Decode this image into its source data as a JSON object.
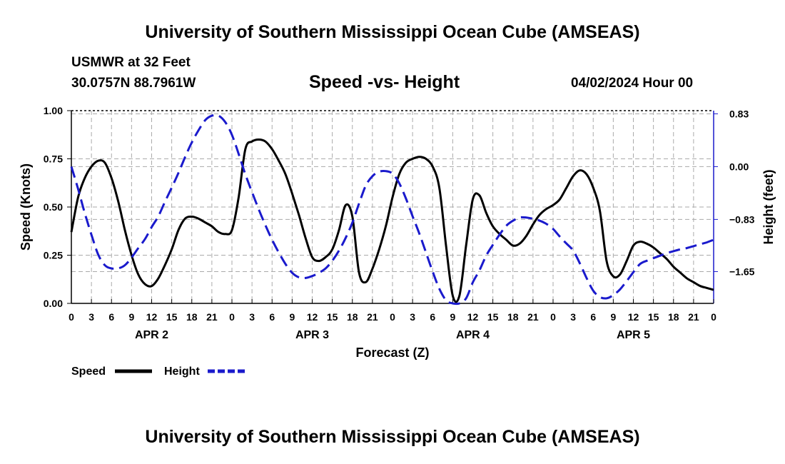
{
  "header": {
    "title": "University of Southern Mississippi Ocean Cube (AMSEAS)",
    "station": "USMWR at 32 Feet",
    "coords": "30.0757N  88.7961W",
    "chart_title": "Speed -vs- Height",
    "datetime": "04/02/2024 Hour 00"
  },
  "footer": {
    "title": "University of Southern Mississippi Ocean Cube (AMSEAS)"
  },
  "colors": {
    "speed": "#000000",
    "height": "#1a1acc",
    "grid": "#aaaaaa"
  },
  "chart_data": {
    "type": "line",
    "title": "Speed -vs- Height",
    "xlabel": "Forecast (Z)",
    "ylabel_left": "Speed (Knots)",
    "ylabel_right": "Height (feet)",
    "x_unit": "forecast hour",
    "xlim": [
      0,
      96
    ],
    "ylim_left": [
      0,
      1
    ],
    "ylim_right": [
      -2.15,
      0.88
    ],
    "x_ticks": [
      0,
      3,
      6,
      9,
      12,
      15,
      18,
      21,
      24,
      27,
      30,
      33,
      36,
      39,
      42,
      45,
      48,
      51,
      54,
      57,
      60,
      63,
      66,
      69,
      72,
      75,
      78,
      81,
      84,
      87,
      90,
      93,
      96
    ],
    "x_tick_labels": [
      "0",
      "3",
      "6",
      "9",
      "12",
      "15",
      "18",
      "21",
      "0",
      "3",
      "6",
      "9",
      "12",
      "15",
      "18",
      "21",
      "0",
      "3",
      "6",
      "9",
      "12",
      "15",
      "18",
      "21",
      "0",
      "3",
      "6",
      "9",
      "12",
      "15",
      "18",
      "21",
      "0"
    ],
    "day_labels": [
      {
        "label": "APR 2",
        "x": 12
      },
      {
        "label": "APR 3",
        "x": 36
      },
      {
        "label": "APR 4",
        "x": 60
      },
      {
        "label": "APR 5",
        "x": 84
      }
    ],
    "left_ticks": [
      0,
      0.25,
      0.5,
      0.75,
      1.0
    ],
    "left_tick_labels": [
      "0.00",
      "0.25",
      "0.50",
      "0.75",
      "1.00"
    ],
    "right_ticks": [
      0.83,
      0.0,
      -0.83,
      -1.65
    ],
    "right_tick_labels": [
      "0.83",
      "0.00",
      "−0.83",
      "−1.65"
    ],
    "grid": true,
    "legend_position": "bottom-left",
    "series": [
      {
        "name": "Speed",
        "axis": "left",
        "style": "solid",
        "x": [
          0,
          1,
          2,
          3,
          4,
          5,
          6,
          7,
          8,
          9,
          10,
          11,
          12,
          13,
          14,
          15,
          16,
          17,
          18,
          19,
          20,
          21,
          22,
          23,
          24,
          25,
          26,
          27,
          28,
          29,
          30,
          31,
          32,
          33,
          34,
          35,
          36,
          37,
          38,
          39,
          40,
          41,
          42,
          43,
          44,
          45,
          46,
          47,
          48,
          49,
          50,
          51,
          52,
          53,
          54,
          55,
          56,
          57,
          58,
          59,
          60,
          61,
          62,
          63,
          64,
          65,
          66,
          67,
          68,
          69,
          70,
          71,
          72,
          73,
          74,
          75,
          76,
          77,
          78,
          79,
          80,
          81,
          82,
          83,
          84,
          85,
          86,
          87,
          88,
          89,
          90,
          91,
          92,
          93,
          94,
          95,
          96
        ],
        "values": [
          0.37,
          0.55,
          0.65,
          0.71,
          0.74,
          0.73,
          0.65,
          0.53,
          0.38,
          0.25,
          0.15,
          0.1,
          0.09,
          0.13,
          0.2,
          0.28,
          0.38,
          0.44,
          0.45,
          0.44,
          0.42,
          0.4,
          0.37,
          0.36,
          0.38,
          0.55,
          0.8,
          0.84,
          0.85,
          0.84,
          0.8,
          0.74,
          0.67,
          0.57,
          0.46,
          0.34,
          0.24,
          0.22,
          0.24,
          0.28,
          0.38,
          0.51,
          0.45,
          0.16,
          0.11,
          0.18,
          0.28,
          0.4,
          0.55,
          0.67,
          0.73,
          0.75,
          0.76,
          0.75,
          0.71,
          0.6,
          0.3,
          0.04,
          0.04,
          0.3,
          0.54,
          0.56,
          0.47,
          0.4,
          0.36,
          0.33,
          0.3,
          0.31,
          0.35,
          0.41,
          0.46,
          0.49,
          0.51,
          0.54,
          0.6,
          0.66,
          0.69,
          0.67,
          0.6,
          0.48,
          0.22,
          0.14,
          0.15,
          0.22,
          0.3,
          0.32,
          0.31,
          0.29,
          0.26,
          0.23,
          0.19,
          0.16,
          0.13,
          0.11,
          0.09,
          0.08,
          0.07
        ]
      },
      {
        "name": "Height",
        "axis": "right",
        "style": "dashed",
        "x": [
          0,
          1,
          2,
          3,
          4,
          5,
          6,
          7,
          8,
          9,
          10,
          11,
          12,
          13,
          14,
          15,
          16,
          17,
          18,
          19,
          20,
          21,
          22,
          23,
          24,
          25,
          26,
          27,
          28,
          29,
          30,
          31,
          32,
          33,
          34,
          35,
          36,
          37,
          38,
          39,
          40,
          41,
          42,
          43,
          44,
          45,
          46,
          47,
          48,
          49,
          50,
          51,
          52,
          53,
          54,
          55,
          56,
          57,
          58,
          59,
          60,
          61,
          62,
          63,
          64,
          65,
          66,
          67,
          68,
          69,
          70,
          71,
          72,
          73,
          74,
          75,
          76,
          77,
          78,
          79,
          80,
          81,
          82,
          83,
          84,
          85,
          86,
          87,
          88,
          89,
          90,
          91,
          92,
          93,
          94,
          95,
          96
        ],
        "values": [
          0.0,
          -0.35,
          -0.73,
          -1.07,
          -1.38,
          -1.55,
          -1.6,
          -1.6,
          -1.55,
          -1.43,
          -1.28,
          -1.14,
          -0.95,
          -0.78,
          -0.55,
          -0.33,
          -0.1,
          0.15,
          0.38,
          0.57,
          0.73,
          0.8,
          0.8,
          0.7,
          0.5,
          0.2,
          -0.12,
          -0.4,
          -0.67,
          -0.92,
          -1.15,
          -1.35,
          -1.53,
          -1.67,
          -1.74,
          -1.75,
          -1.72,
          -1.67,
          -1.6,
          -1.48,
          -1.32,
          -1.12,
          -0.88,
          -0.58,
          -0.3,
          -0.15,
          -0.08,
          -0.07,
          -0.11,
          -0.26,
          -0.5,
          -0.78,
          -1.05,
          -1.35,
          -1.65,
          -1.92,
          -2.1,
          -2.15,
          -2.15,
          -2.07,
          -1.82,
          -1.63,
          -1.4,
          -1.23,
          -1.07,
          -0.93,
          -0.85,
          -0.8,
          -0.8,
          -0.82,
          -0.85,
          -0.9,
          -0.98,
          -1.1,
          -1.21,
          -1.32,
          -1.52,
          -1.75,
          -1.95,
          -2.05,
          -2.07,
          -2.02,
          -1.93,
          -1.8,
          -1.66,
          -1.53,
          -1.48,
          -1.44,
          -1.4,
          -1.36,
          -1.33,
          -1.3,
          -1.28,
          -1.25,
          -1.22,
          -1.19,
          -1.15
        ]
      }
    ]
  }
}
